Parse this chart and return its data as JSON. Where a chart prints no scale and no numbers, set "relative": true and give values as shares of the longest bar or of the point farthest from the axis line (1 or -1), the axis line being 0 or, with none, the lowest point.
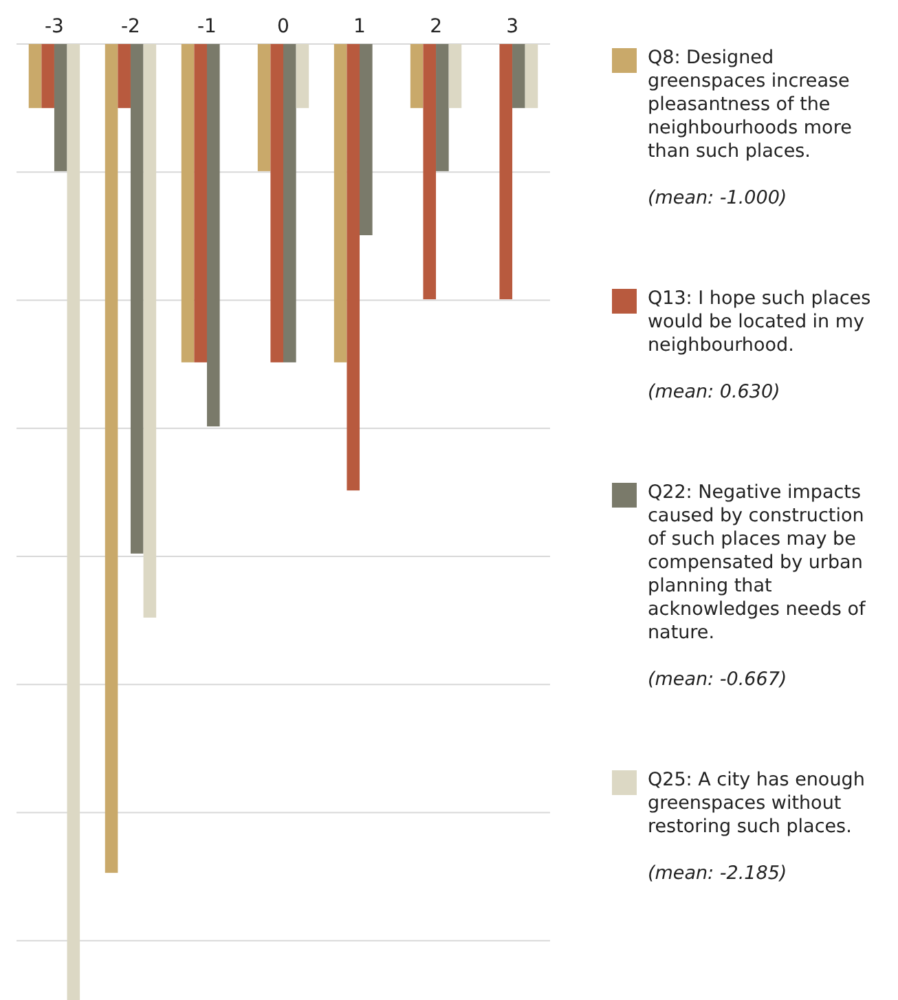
{
  "chart_data": {
    "type": "bar",
    "relative": true,
    "categories": [
      "-3",
      "-2",
      "-1",
      "0",
      "1",
      "2",
      "3"
    ],
    "series": [
      {
        "name": "Q8: Designed greenspaces increase pleasantness of the neighbourhoods more than such places.",
        "color": "#c9a96a",
        "values": [
          -0.067,
          -0.867,
          -0.333,
          -0.133,
          -0.333,
          -0.067,
          0
        ]
      },
      {
        "name": "Q13: I hope such places would be located in my neighbourhood.",
        "color": "#b85a3e",
        "values": [
          -0.067,
          -0.067,
          -0.333,
          -0.333,
          -0.467,
          -0.267,
          -0.267
        ]
      },
      {
        "name": "Q22: Negative impacts caused by construction of such places may be compensated by urban planning that acknowledges needs of nature.",
        "color": "#7a7a6a",
        "values": [
          -0.133,
          -0.533,
          -0.4,
          -0.333,
          -0.2,
          -0.133,
          -0.067
        ]
      },
      {
        "name": "Q25: A city has enough greenspaces without restoring such places.",
        "color": "#dcd8c4",
        "values": [
          -1,
          -0.6,
          0,
          -0.067,
          0,
          -0.067,
          -0.067
        ]
      }
    ],
    "annotations": [
      "(mean: -1.000)",
      "(mean: 0.630)",
      "(mean: -0.667)",
      "(mean: -2.185)"
    ],
    "grid": "y",
    "legend": "right"
  }
}
